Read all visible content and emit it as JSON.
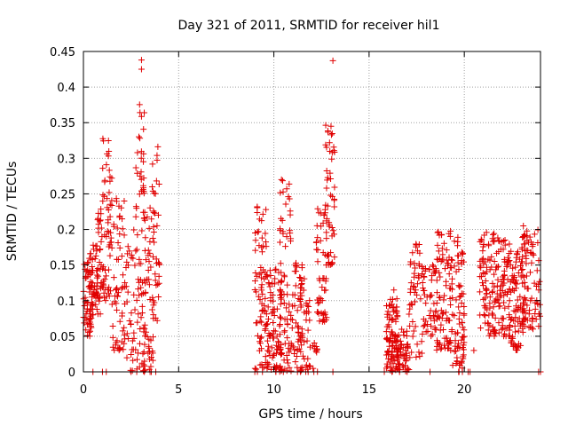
{
  "chart_data": {
    "type": "scatter",
    "title": "Day 321 of 2011, SRMTID for receiver hil1",
    "xlabel": "GPS time / hours",
    "ylabel": "SRMTID / TECUs",
    "xlim": [
      0,
      24
    ],
    "ylim": [
      0,
      0.45
    ],
    "xticks": [
      0,
      5,
      10,
      15,
      20
    ],
    "yticks": [
      0,
      0.05,
      0.1,
      0.15,
      0.2,
      0.25,
      0.3,
      0.35,
      0.4,
      0.45
    ],
    "xtick_labels": [
      "0",
      "5",
      "10",
      "15",
      "20"
    ],
    "ytick_labels": [
      "0",
      "0.05",
      "0.1",
      "0.15",
      "0.2",
      "0.25",
      "0.3",
      "0.35",
      "0.4",
      "0.45"
    ],
    "grid": true,
    "marker": "+",
    "series_color": "#e00000",
    "series": [
      {
        "name": "SRMTID",
        "clusters": [
          {
            "x_range": [
              0.0,
              0.5
            ],
            "y_range": [
              0.05,
              0.16
            ],
            "n": 60
          },
          {
            "x_range": [
              0.3,
              0.9
            ],
            "y_range": [
              0.08,
              0.18
            ],
            "n": 50
          },
          {
            "x_range": [
              0.7,
              1.0
            ],
            "y_range": [
              0.1,
              0.23
            ],
            "n": 25
          },
          {
            "x_range": [
              1.0,
              1.5
            ],
            "y_range": [
              0.1,
              0.33
            ],
            "n": 60
          },
          {
            "x_range": [
              1.5,
              2.2
            ],
            "y_range": [
              0.03,
              0.25
            ],
            "n": 60
          },
          {
            "x_range": [
              2.2,
              2.7
            ],
            "y_range": [
              0.0,
              0.2
            ],
            "n": 30
          },
          {
            "x_range": [
              2.7,
              3.2
            ],
            "y_range": [
              0.0,
              0.38
            ],
            "n": 70
          },
          {
            "x_range": [
              3.2,
              3.7
            ],
            "y_range": [
              0.0,
              0.25
            ],
            "n": 50
          },
          {
            "x_range": [
              3.6,
              4.0
            ],
            "y_range": [
              0.07,
              0.33
            ],
            "n": 40
          },
          {
            "x_range": [
              9.0,
              9.6
            ],
            "y_range": [
              0.0,
              0.24
            ],
            "n": 70
          },
          {
            "x_range": [
              9.6,
              10.4
            ],
            "y_range": [
              0.0,
              0.15
            ],
            "n": 90
          },
          {
            "x_range": [
              10.3,
              10.9
            ],
            "y_range": [
              0.0,
              0.27
            ],
            "n": 70
          },
          {
            "x_range": [
              10.9,
              11.6
            ],
            "y_range": [
              0.0,
              0.17
            ],
            "n": 70
          },
          {
            "x_range": [
              11.6,
              12.3
            ],
            "y_range": [
              0.0,
              0.12
            ],
            "n": 30
          },
          {
            "x_range": [
              12.2,
              12.8
            ],
            "y_range": [
              0.07,
              0.23
            ],
            "n": 50
          },
          {
            "x_range": [
              12.7,
              13.2
            ],
            "y_range": [
              0.15,
              0.35
            ],
            "n": 50
          },
          {
            "x_range": [
              15.9,
              16.5
            ],
            "y_range": [
              0.0,
              0.11
            ],
            "n": 80
          },
          {
            "x_range": [
              16.4,
              17.1
            ],
            "y_range": [
              0.0,
              0.06
            ],
            "n": 60
          },
          {
            "x_range": [
              17.1,
              17.8
            ],
            "y_range": [
              0.02,
              0.18
            ],
            "n": 50
          },
          {
            "x_range": [
              17.8,
              18.6
            ],
            "y_range": [
              0.05,
              0.15
            ],
            "n": 50
          },
          {
            "x_range": [
              18.5,
              19.3
            ],
            "y_range": [
              0.03,
              0.2
            ],
            "n": 80
          },
          {
            "x_range": [
              19.3,
              20.0
            ],
            "y_range": [
              0.0,
              0.19
            ],
            "n": 80
          },
          {
            "x_range": [
              20.8,
              21.6
            ],
            "y_range": [
              0.05,
              0.2
            ],
            "n": 80
          },
          {
            "x_range": [
              21.6,
              22.4
            ],
            "y_range": [
              0.05,
              0.19
            ],
            "n": 80
          },
          {
            "x_range": [
              22.3,
              23.1
            ],
            "y_range": [
              0.03,
              0.17
            ],
            "n": 80
          },
          {
            "x_range": [
              23.0,
              24.0
            ],
            "y_range": [
              0.06,
              0.2
            ],
            "n": 90
          }
        ],
        "outliers": [
          {
            "x": 3.05,
            "y": 0.438
          },
          {
            "x": 3.05,
            "y": 0.425
          },
          {
            "x": 13.1,
            "y": 0.437
          },
          {
            "x": 13.0,
            "y": 0.345
          },
          {
            "x": 10.4,
            "y": 0.27
          },
          {
            "x": 23.1,
            "y": 0.205
          },
          {
            "x": 16.3,
            "y": 0.115
          },
          {
            "x": 20.5,
            "y": 0.03
          }
        ],
        "zero_x": [
          0.5,
          1.0,
          1.2,
          2.5,
          2.8,
          3.2,
          3.5,
          3.8,
          9.0,
          9.4,
          10.5,
          11.4,
          11.8,
          12.1,
          13.1,
          15.8,
          16.2,
          16.6,
          17.0,
          18.2,
          19.7,
          19.9,
          20.2,
          20.3,
          23.9,
          24.0
        ]
      }
    ]
  }
}
